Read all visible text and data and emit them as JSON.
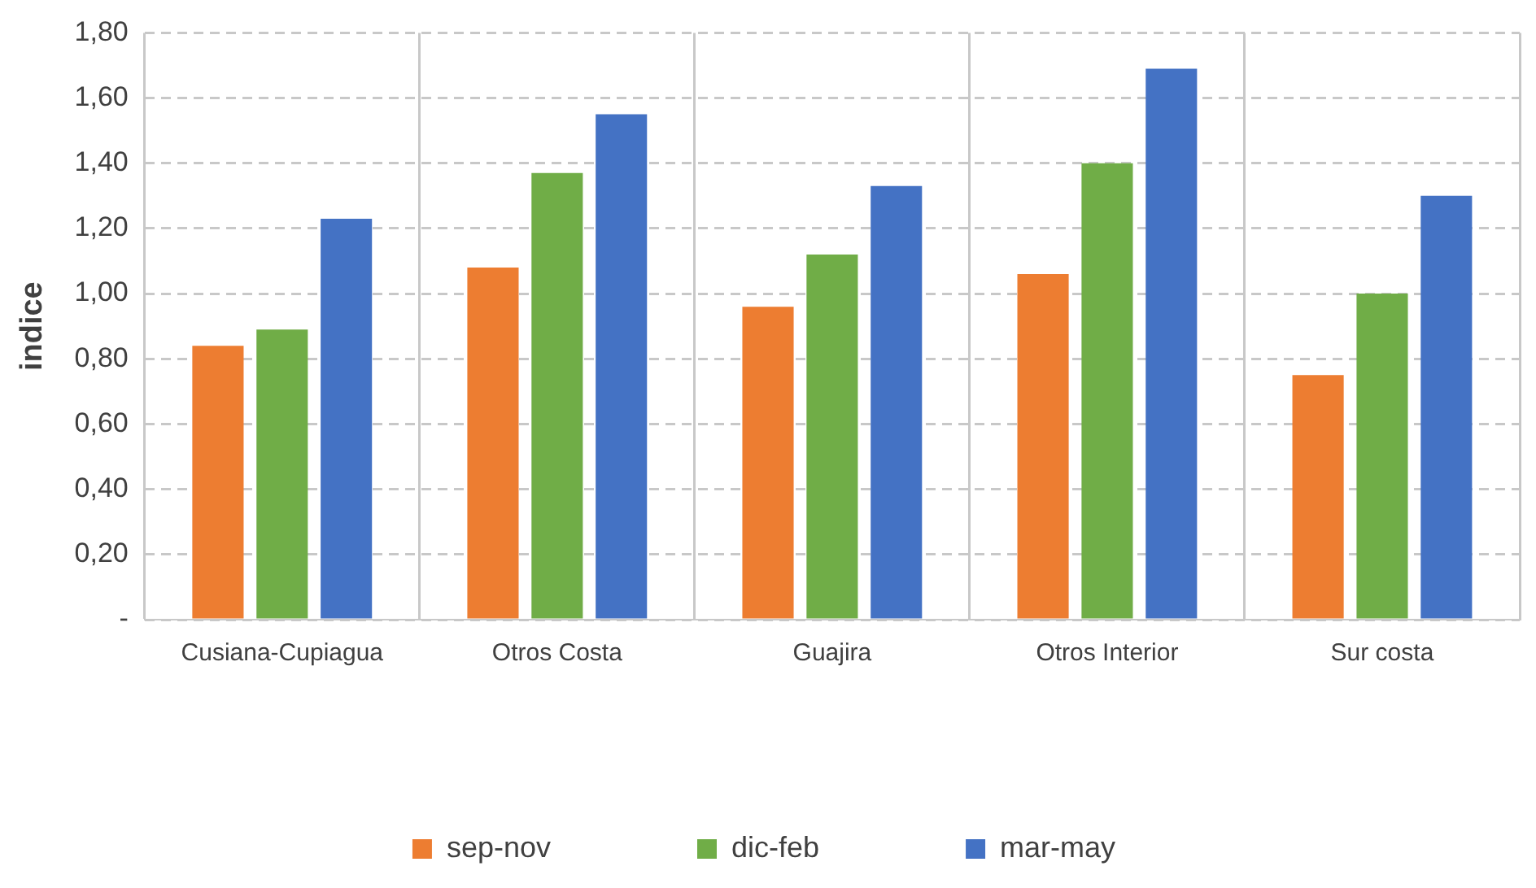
{
  "chart_data": {
    "type": "bar",
    "ylabel": "indice",
    "categories": [
      "Cusiana-Cupiagua",
      "Otros Costa",
      "Guajira",
      "Otros Interior",
      "Sur costa"
    ],
    "series": [
      {
        "name": "sep-nov",
        "color": "#ed7d31",
        "values": [
          0.84,
          1.08,
          0.96,
          1.06,
          0.75
        ]
      },
      {
        "name": "dic-feb",
        "color": "#70ad47",
        "values": [
          0.89,
          1.37,
          1.12,
          1.4,
          1.0
        ]
      },
      {
        "name": "mar-may",
        "color": "#4472c4",
        "values": [
          1.23,
          1.55,
          1.33,
          1.69,
          1.3
        ]
      }
    ],
    "ylim": [
      0,
      1.8
    ],
    "yticks": [
      {
        "value": 0,
        "label": "-"
      },
      {
        "value": 0.2,
        "label": "0,20"
      },
      {
        "value": 0.4,
        "label": "0,40"
      },
      {
        "value": 0.6,
        "label": "0,60"
      },
      {
        "value": 0.8,
        "label": "0,80"
      },
      {
        "value": 1,
        "label": "1,00"
      },
      {
        "value": 1.2,
        "label": "1,20"
      },
      {
        "value": 1.4,
        "label": "1,40"
      },
      {
        "value": 1.6,
        "label": "1,60"
      },
      {
        "value": 1.8,
        "label": "1,80"
      }
    ],
    "grid": true,
    "legend": "bottom"
  }
}
